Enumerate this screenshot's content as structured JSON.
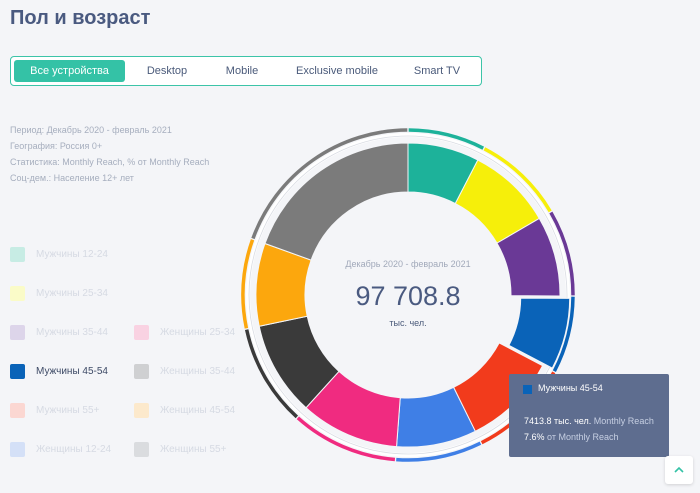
{
  "page": {
    "title": "Пол и возраст"
  },
  "tabs": [
    {
      "label": "Все устройства",
      "active": true
    },
    {
      "label": "Desktop",
      "active": false
    },
    {
      "label": "Mobile",
      "active": false
    },
    {
      "label": "Exclusive mobile",
      "active": false
    },
    {
      "label": "Smart TV",
      "active": false
    }
  ],
  "meta": {
    "period": "Период: Декабрь 2020 - февраль 2021",
    "geo": "География: Россия 0+",
    "stat": "Статистика: Monthly Reach, % от Monthly Reach",
    "socdem": "Соц-дем.: Население 12+ лет"
  },
  "legend": [
    {
      "label": "Мужчины 12-24",
      "color": "#c7ece4",
      "active": false
    },
    {
      "label": "Мужчины 25-34",
      "color": "#fafbc8",
      "active": false
    },
    {
      "label": "Мужчины 35-44",
      "color": "#ddd5ea",
      "active": false
    },
    {
      "label": "Мужчины 45-54",
      "color": "#0a63b8",
      "active": true
    },
    {
      "label": "Мужчины 55+",
      "color": "#fbd7d2",
      "active": false
    },
    {
      "label": "Женщины 12-24",
      "color": "#d4e0f7",
      "active": false
    },
    {
      "label": "Женщины 25-34",
      "color": "#f9d2e2",
      "active": false
    },
    {
      "label": "Женщины 35-44",
      "color": "#cfd0d2",
      "active": false
    },
    {
      "label": "Женщины 45-54",
      "color": "#fce9cc",
      "active": false
    },
    {
      "label": "Женщины 55+",
      "color": "#dadcdf",
      "active": false
    }
  ],
  "center": {
    "period": "Декабрь 2020 - февраль 2021",
    "value": "97 708.8",
    "unit": "тыс. чел."
  },
  "tooltip": {
    "name": "Мужчины 45-54",
    "color": "#0a63b8",
    "value": "7413.8 тыс. чел.",
    "value_suffix": "Monthly Reach",
    "percent": "7.6%",
    "percent_suffix": "от Monthly Reach"
  },
  "chart_data": {
    "type": "pie",
    "title": "",
    "total": 97708.8,
    "unit": "тыс. чел.",
    "slices": [
      {
        "name": "Мужчины 12-24",
        "percent": 7.6,
        "color": "#1db29a"
      },
      {
        "name": "Мужчины 25-34",
        "percent": 9.0,
        "color": "#f6ef0a"
      },
      {
        "name": "Мужчины 35-44",
        "percent": 8.5,
        "color": "#6a3996"
      },
      {
        "name": "Мужчины 45-54",
        "percent": 7.6,
        "color": "#0a63b8"
      },
      {
        "name": "Мужчины 55+",
        "percent": 10.0,
        "color": "#f23b1c"
      },
      {
        "name": "Женщины 12-24",
        "percent": 8.5,
        "color": "#3f7fe6"
      },
      {
        "name": "Женщины 25-34",
        "percent": 10.5,
        "color": "#f02b80"
      },
      {
        "name": "Женщины 35-44",
        "percent": 10.0,
        "color": "#3a3a3a"
      },
      {
        "name": "Женщины 45-54",
        "percent": 8.8,
        "color": "#fca70d"
      },
      {
        "name": "Женщины 55+",
        "percent": 19.5,
        "color": "#7b7b7b"
      }
    ],
    "groups": [
      {
        "name": "Мужчины",
        "color": "#29a7d4"
      },
      {
        "name": "Женщины",
        "color": "#ff6e28"
      }
    ]
  }
}
